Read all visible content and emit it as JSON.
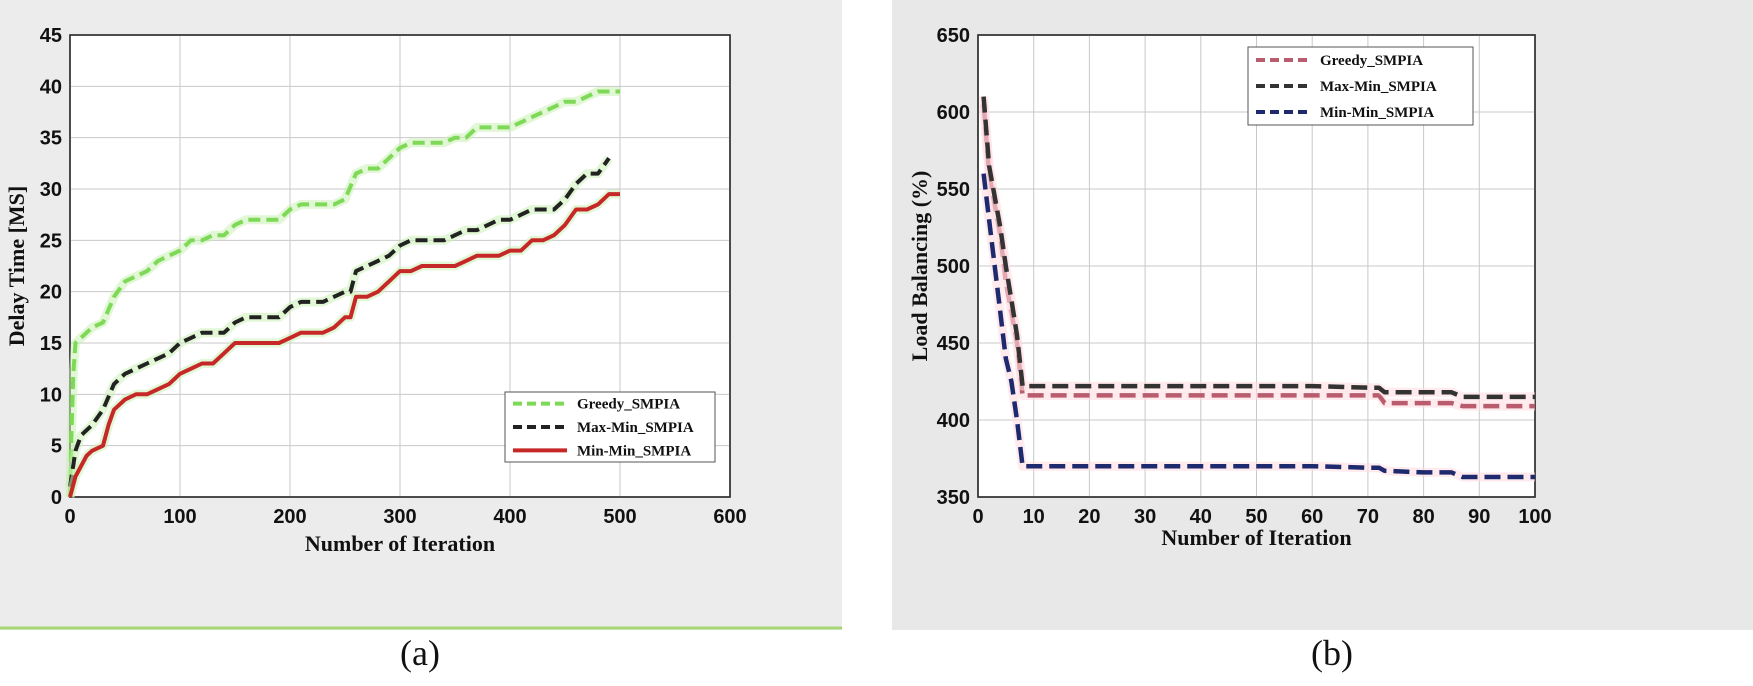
{
  "captions": {
    "a": "(a)",
    "b": "(b)"
  },
  "chart_data": [
    {
      "id": "a",
      "type": "line",
      "title": "",
      "xlabel": "Number of Iteration",
      "ylabel": "Delay Time [MS]",
      "xlim": [
        0,
        600
      ],
      "ylim": [
        0,
        45
      ],
      "xticks": [
        "0",
        "100",
        "200",
        "300",
        "400",
        "500",
        "600"
      ],
      "yticks": [
        "0",
        "5",
        "10",
        "15",
        "20",
        "25",
        "30",
        "35",
        "40",
        "45"
      ],
      "grid": true,
      "legend_position": "bottom-right",
      "series": [
        {
          "name": "Greedy_SMPIA",
          "color": "#7ed957",
          "dash": "dashed",
          "x": [
            0,
            1,
            3,
            5,
            10,
            20,
            30,
            40,
            50,
            60,
            70,
            80,
            90,
            100,
            110,
            120,
            130,
            140,
            150,
            160,
            170,
            180,
            190,
            200,
            210,
            220,
            230,
            240,
            250,
            260,
            270,
            280,
            290,
            300,
            310,
            320,
            330,
            340,
            350,
            360,
            370,
            380,
            390,
            400,
            410,
            420,
            430,
            440,
            450,
            460,
            470,
            480,
            490,
            500
          ],
          "values": [
            0,
            5,
            12,
            15,
            15.5,
            16.5,
            17,
            19.5,
            21,
            21.5,
            22,
            23,
            23.5,
            24,
            25,
            25,
            25.5,
            25.5,
            26.5,
            27,
            27,
            27,
            27,
            28,
            28.5,
            28.5,
            28.5,
            28.5,
            29,
            31.5,
            32,
            32,
            33,
            34,
            34.5,
            34.5,
            34.5,
            34.5,
            35,
            35,
            36,
            36,
            36,
            36,
            36.5,
            37,
            37.5,
            38,
            38.5,
            38.5,
            39,
            39.5,
            39.5,
            39.5
          ]
        },
        {
          "name": "Max-Min_SMPIA",
          "color": "#222222",
          "dash": "dashed",
          "x": [
            0,
            5,
            10,
            20,
            30,
            40,
            50,
            60,
            70,
            80,
            90,
            100,
            110,
            120,
            130,
            140,
            150,
            160,
            170,
            180,
            190,
            200,
            210,
            220,
            230,
            240,
            250,
            255,
            260,
            270,
            280,
            290,
            300,
            310,
            320,
            330,
            340,
            350,
            360,
            370,
            380,
            390,
            400,
            410,
            420,
            430,
            440,
            450,
            460,
            470,
            480,
            490
          ],
          "values": [
            1,
            4.5,
            6,
            7,
            8.5,
            11,
            12,
            12.5,
            13,
            13.5,
            14,
            15,
            15.5,
            16,
            16,
            16,
            17,
            17.5,
            17.5,
            17.5,
            17.5,
            18.5,
            19,
            19,
            19,
            19.5,
            20,
            20,
            22,
            22.5,
            23,
            23.5,
            24.5,
            25,
            25,
            25,
            25,
            25.5,
            26,
            26,
            26.5,
            27,
            27,
            27.5,
            28,
            28,
            28,
            29,
            30.5,
            31.5,
            31.5,
            33
          ]
        },
        {
          "name": "Min-Min_SMPIA",
          "color": "#c62828",
          "dash": "solid",
          "x": [
            0,
            5,
            10,
            15,
            20,
            30,
            35,
            40,
            50,
            60,
            70,
            80,
            90,
            100,
            110,
            120,
            130,
            140,
            150,
            160,
            170,
            180,
            190,
            200,
            210,
            220,
            230,
            240,
            250,
            255,
            260,
            270,
            280,
            290,
            300,
            310,
            320,
            330,
            340,
            350,
            360,
            370,
            380,
            390,
            400,
            410,
            420,
            430,
            440,
            450,
            460,
            470,
            480,
            490,
            500
          ],
          "values": [
            0,
            2,
            3,
            4,
            4.5,
            5,
            7,
            8.5,
            9.5,
            10,
            10,
            10.5,
            11,
            12,
            12.5,
            13,
            13,
            14,
            15,
            15,
            15,
            15,
            15,
            15.5,
            16,
            16,
            16,
            16.5,
            17.5,
            17.5,
            19.5,
            19.5,
            20,
            21,
            22,
            22,
            22.5,
            22.5,
            22.5,
            22.5,
            23,
            23.5,
            23.5,
            23.5,
            24,
            24,
            25,
            25,
            25.5,
            26.5,
            28,
            28,
            28.5,
            29.5,
            29.5
          ]
        }
      ]
    },
    {
      "id": "b",
      "type": "line",
      "title": "",
      "xlabel": "Number of Iteration",
      "ylabel": "Load Balancing (%)",
      "xlim": [
        0,
        100
      ],
      "ylim": [
        350,
        650
      ],
      "xticks": [
        "0",
        "10",
        "20",
        "30",
        "40",
        "50",
        "60",
        "70",
        "80",
        "90",
        "100"
      ],
      "yticks": [
        "350",
        "400",
        "450",
        "500",
        "550",
        "600",
        "650"
      ],
      "grid": true,
      "legend_position": "top-right",
      "series": [
        {
          "name": "Greedy_SMPIA",
          "color": "#b85c6e",
          "dash": "dashed",
          "x": [
            1,
            2,
            3,
            4,
            5,
            6,
            7,
            8,
            9,
            20,
            40,
            60,
            70,
            72,
            73,
            80,
            85,
            87,
            90,
            95,
            100
          ],
          "values": [
            605,
            560,
            540,
            520,
            490,
            470,
            450,
            416,
            416,
            416,
            416,
            416,
            416,
            416,
            411,
            411,
            411,
            409,
            409,
            409,
            409
          ]
        },
        {
          "name": "Max-Min_SMPIA",
          "color": "#333333",
          "dash": "dashed",
          "x": [
            1,
            2,
            3,
            4,
            5,
            6,
            7,
            8,
            9,
            20,
            40,
            60,
            70,
            72,
            73,
            80,
            85,
            87,
            90,
            95,
            100
          ],
          "values": [
            610,
            565,
            545,
            525,
            500,
            478,
            455,
            422,
            422,
            422,
            422,
            422,
            421,
            421,
            418,
            418,
            418,
            415,
            415,
            415,
            415
          ]
        },
        {
          "name": "Min-Min_SMPIA",
          "color": "#1e2a6e",
          "dash": "dashed",
          "x": [
            1,
            2,
            3,
            4,
            5,
            6,
            7,
            8,
            9,
            20,
            40,
            60,
            70,
            72,
            73,
            80,
            85,
            87,
            90,
            95,
            100
          ],
          "values": [
            560,
            530,
            500,
            470,
            440,
            425,
            400,
            370,
            370,
            370,
            370,
            370,
            369,
            369,
            367,
            366,
            366,
            363,
            363,
            363,
            363
          ]
        }
      ]
    }
  ]
}
